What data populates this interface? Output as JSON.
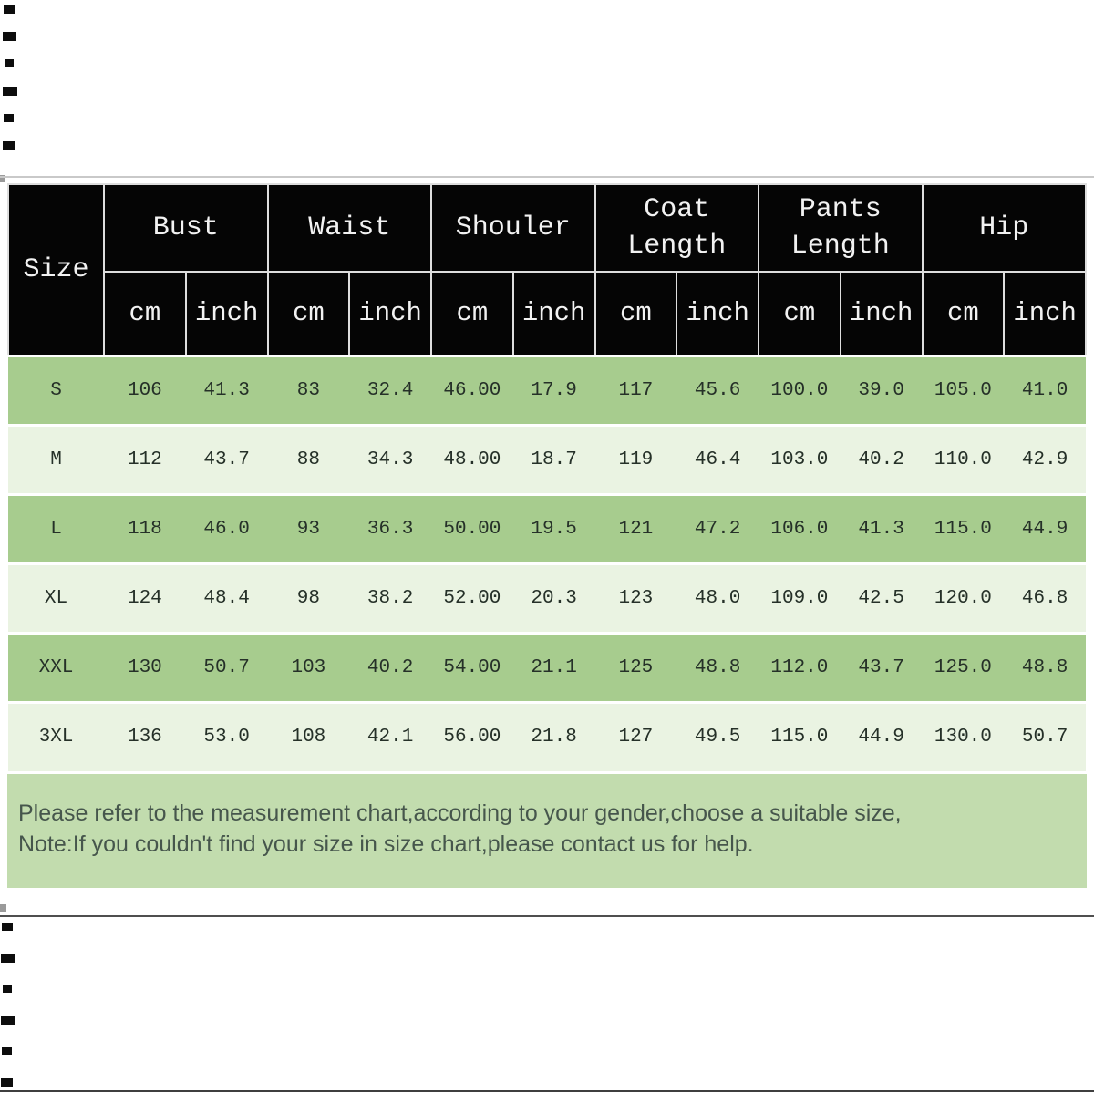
{
  "table": {
    "size_header": "Size",
    "unit_cm": "cm",
    "unit_inch": "inch",
    "groups": [
      {
        "label": "Bust"
      },
      {
        "label": "Waist"
      },
      {
        "label": "Shouler"
      },
      {
        "label": "Coat Length"
      },
      {
        "label": "Pants Length"
      },
      {
        "label": "Hip"
      }
    ],
    "rows": [
      {
        "size": "S",
        "values": [
          "106",
          "41.3",
          "83",
          "32.4",
          "46.00",
          "17.9",
          "117",
          "45.6",
          "100.0",
          "39.0",
          "105.0",
          "41.0"
        ]
      },
      {
        "size": "M",
        "values": [
          "112",
          "43.7",
          "88",
          "34.3",
          "48.00",
          "18.7",
          "119",
          "46.4",
          "103.0",
          "40.2",
          "110.0",
          "42.9"
        ]
      },
      {
        "size": "L",
        "values": [
          "118",
          "46.0",
          "93",
          "36.3",
          "50.00",
          "19.5",
          "121",
          "47.2",
          "106.0",
          "41.3",
          "115.0",
          "44.9"
        ]
      },
      {
        "size": "XL",
        "values": [
          "124",
          "48.4",
          "98",
          "38.2",
          "52.00",
          "20.3",
          "123",
          "48.0",
          "109.0",
          "42.5",
          "120.0",
          "46.8"
        ]
      },
      {
        "size": "XXL",
        "values": [
          "130",
          "50.7",
          "103",
          "40.2",
          "54.00",
          "21.1",
          "125",
          "48.8",
          "112.0",
          "43.7",
          "125.0",
          "48.8"
        ]
      },
      {
        "size": "3XL",
        "values": [
          "136",
          "53.0",
          "108",
          "42.1",
          "56.00",
          "21.8",
          "127",
          "49.5",
          "115.0",
          "44.9",
          "130.0",
          "50.7"
        ]
      }
    ]
  },
  "note": {
    "line1": "Please refer to the measurement chart,according to your gender,choose a suitable size,",
    "line2": "Note:If you couldn't find your size in size chart,please contact us for help."
  },
  "colors": {
    "header_bg": "#050505",
    "header_text": "#f2f2f2",
    "row_green": "#a7cc8e",
    "row_light": "#eaf3e2",
    "note_bg": "#c2dcae",
    "note_text": "#46564c",
    "data_text": "#253028"
  }
}
